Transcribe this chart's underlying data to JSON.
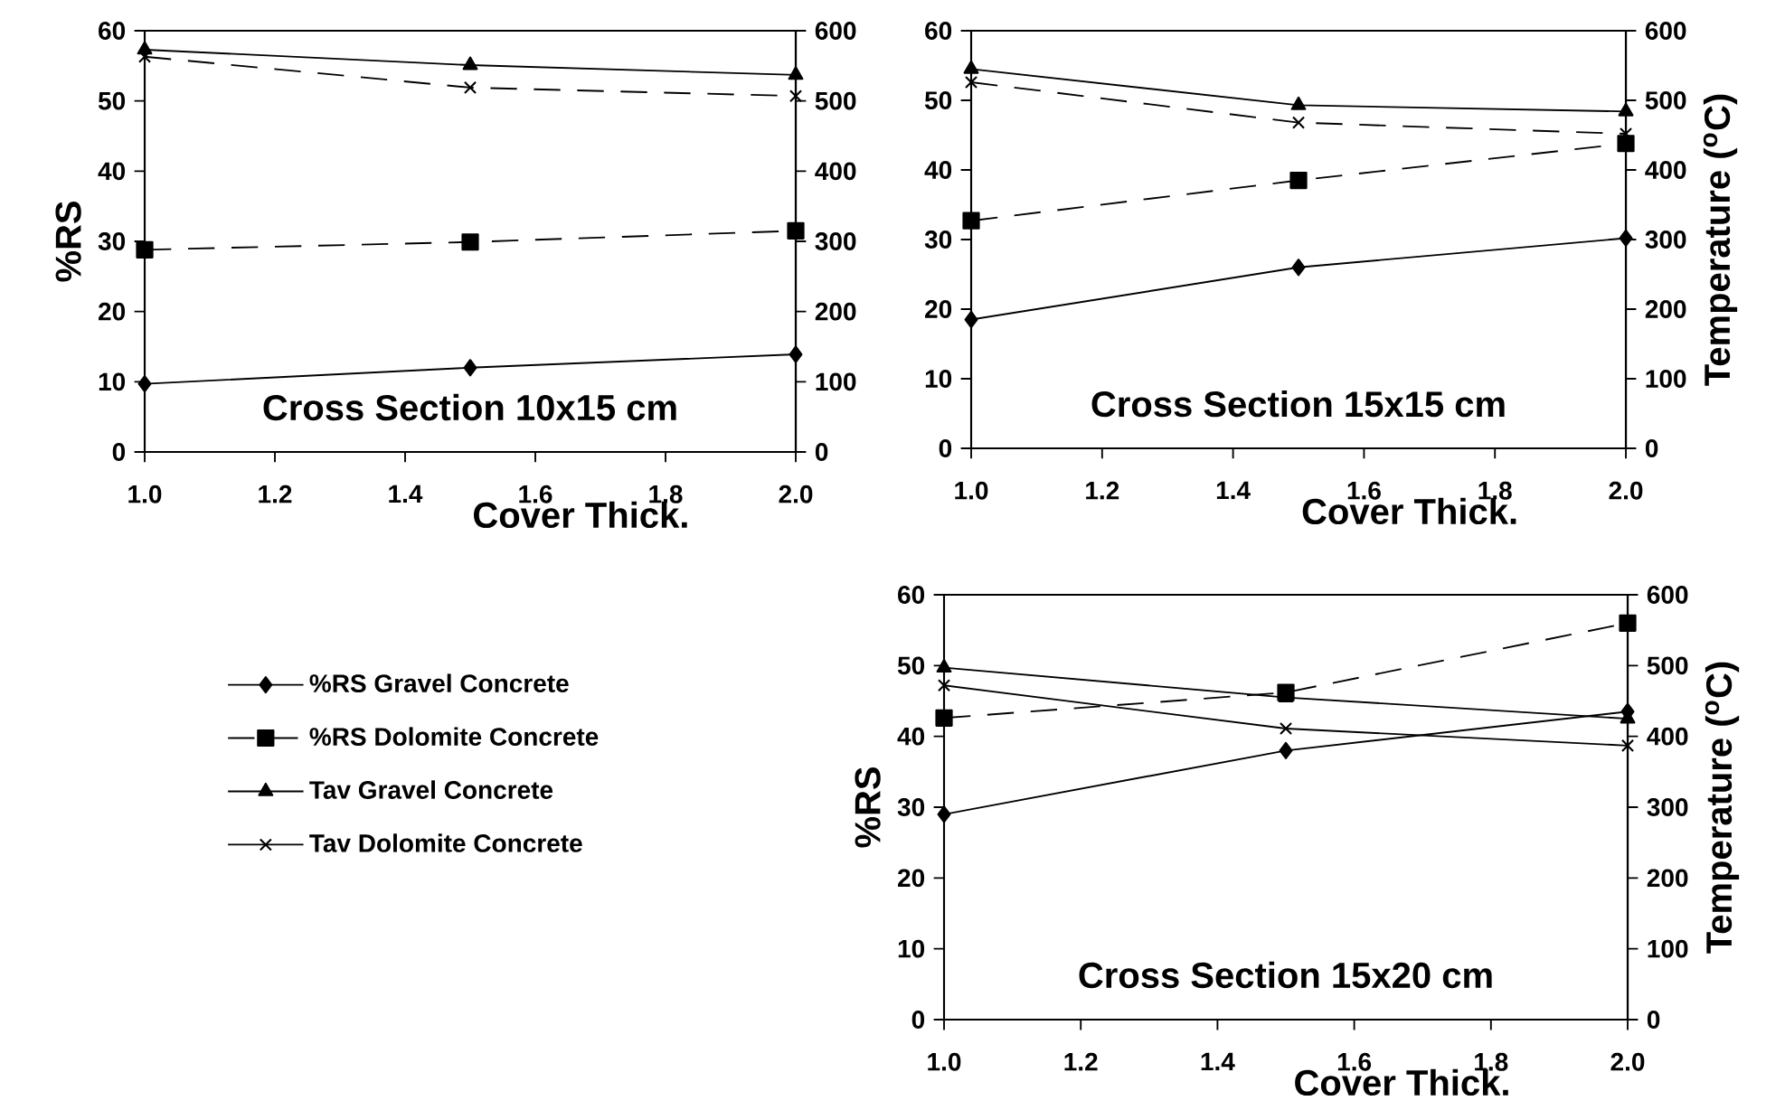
{
  "chart_data": [
    {
      "type": "line",
      "title": "Cross Section 10x15 cm",
      "xlabel": "Cover Thick.",
      "ylabel": "%RS",
      "x": [
        1.0,
        1.5,
        2.0
      ],
      "xlim": [
        1.0,
        2.0
      ],
      "xticks": [
        {
          "value": 1.0,
          "label": "1.0"
        },
        {
          "value": 1.2,
          "label": "1.2"
        },
        {
          "value": 1.4,
          "label": "1.4"
        },
        {
          "value": 1.6,
          "label": "1.6"
        },
        {
          "value": 1.8,
          "label": "1.8"
        },
        {
          "value": 2.0,
          "label": "2.0"
        }
      ],
      "ylim": [
        0,
        60
      ],
      "yticks": [
        0,
        10,
        20,
        30,
        40,
        50,
        60
      ],
      "y2lim": [
        0,
        600
      ],
      "y2ticks": [
        0,
        100,
        200,
        300,
        400,
        500,
        600
      ],
      "series": [
        {
          "color": "#000000",
          "marker": "diamond",
          "line_style": "solid",
          "values": [
            9.7,
            12,
            13.9
          ]
        },
        {
          "color": "#000000",
          "marker": "square",
          "line_style": "dashed",
          "values": [
            28.8,
            29.9,
            31.5
          ]
        },
        {
          "color": "#000000",
          "marker": "triangle",
          "line_style": "solid",
          "axis": "y2",
          "values": [
            573,
            551,
            537
          ]
        },
        {
          "color": "#000000",
          "marker": "cross",
          "line_style": "dashed",
          "axis": "y2",
          "values": [
            563,
            519,
            507
          ]
        }
      ]
    },
    {
      "type": "line",
      "title": "Cross Section 15x15 cm",
      "xlabel": "Cover Thick.",
      "y2label": "Temperature ($^{o}$C)",
      "x": [
        1.0,
        1.5,
        2.0
      ],
      "xlim": [
        1.0,
        2.0
      ],
      "xticks": [
        {
          "value": 1.0,
          "label": "1.0"
        },
        {
          "value": 1.2,
          "label": "1.2"
        },
        {
          "value": 1.4,
          "label": "1.4"
        },
        {
          "value": 1.6,
          "label": "1.6"
        },
        {
          "value": 1.8,
          "label": "1.8"
        },
        {
          "value": 2.0,
          "label": "2.0"
        }
      ],
      "ylim": [
        0,
        60
      ],
      "yticks": [
        0,
        10,
        20,
        30,
        40,
        50,
        60
      ],
      "y2lim": [
        0,
        600
      ],
      "y2ticks": [
        0,
        100,
        200,
        300,
        400,
        500,
        600
      ],
      "series": [
        {
          "color": "#000000",
          "marker": "diamond",
          "line_style": "solid",
          "values": [
            18.5,
            26,
            30.2
          ]
        },
        {
          "color": "#000000",
          "marker": "square",
          "line_style": "dashed",
          "values": [
            32.7,
            38.5,
            43.8
          ]
        },
        {
          "color": "#000000",
          "marker": "triangle",
          "line_style": "solid",
          "axis": "y2",
          "values": [
            545,
            493,
            484
          ]
        },
        {
          "color": "#000000",
          "marker": "cross",
          "line_style": "dashed",
          "axis": "y2",
          "values": [
            526,
            468,
            452
          ]
        }
      ]
    },
    {
      "type": "line",
      "title": "Cross Section 15x20 cm",
      "xlabel": "Cover Thick.",
      "ylabel": "%RS",
      "y2label": "Temperature ($^{o}$C)",
      "x": [
        1.0,
        1.5,
        2.0
      ],
      "legend": "left",
      "xlim": [
        1.0,
        2.0
      ],
      "xticks": [
        {
          "value": 1.0,
          "label": "1.0"
        },
        {
          "value": 1.2,
          "label": "1.2"
        },
        {
          "value": 1.4,
          "label": "1.4"
        },
        {
          "value": 1.6,
          "label": "1.6"
        },
        {
          "value": 1.8,
          "label": "1.8"
        },
        {
          "value": 2.0,
          "label": "2.0"
        }
      ],
      "ylim": [
        0,
        60
      ],
      "yticks": [
        0,
        10,
        20,
        30,
        40,
        50,
        60
      ],
      "y2lim": [
        0,
        600
      ],
      "y2ticks": [
        0,
        100,
        200,
        300,
        400,
        500,
        600
      ],
      "series": [
        {
          "name": "%RS Gravel Concrete",
          "color": "#000000",
          "marker": "diamond",
          "line_style": "solid",
          "values": [
            29,
            38,
            43.5
          ]
        },
        {
          "name": "%RS Dolomite Concrete",
          "color": "#000000",
          "marker": "square",
          "line_style": "dashed",
          "values": [
            42.6,
            46.2,
            56
          ]
        },
        {
          "name": "Tav Gravel Concrete",
          "color": "#000000",
          "marker": "triangle",
          "line_style": "solid",
          "axis": "y2",
          "values": [
            497,
            455,
            425
          ]
        },
        {
          "name": "Tav Dolomite Concrete",
          "color": "#000000",
          "marker": "cross",
          "line_style": "solid",
          "axis": "y2",
          "values": [
            472,
            411,
            387
          ]
        }
      ]
    }
  ]
}
